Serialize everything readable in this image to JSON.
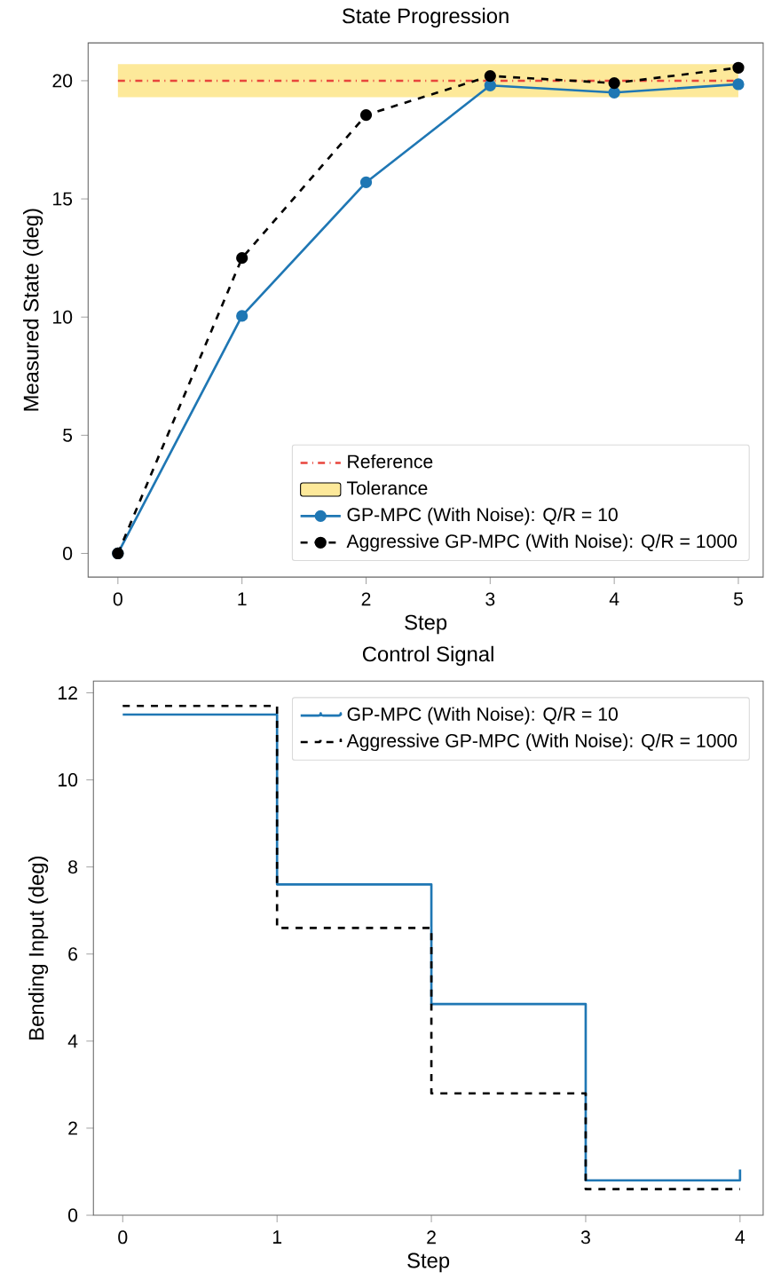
{
  "chart_data": [
    {
      "type": "line",
      "title": "State Progression",
      "xlabel": "Step",
      "ylabel": "Measured State (deg)",
      "x": [
        0,
        1,
        2,
        3,
        4,
        5
      ],
      "xlim": [
        -0.24,
        5.2
      ],
      "ylim": [
        -1.0,
        21.6
      ],
      "xticks": [
        0,
        1,
        2,
        3,
        4,
        5
      ],
      "yticks": [
        0,
        5,
        10,
        15,
        20
      ],
      "marker": "circle",
      "legend": "bottom right",
      "ref_lines": [
        {
          "axis": "y",
          "value": 20,
          "label": "Reference",
          "color": "#e8453c",
          "line_style": "dashdot"
        }
      ],
      "bands": [
        {
          "axis": "y",
          "from": 19.3,
          "to": 20.7,
          "label": "Tolerance",
          "color": "#fde99a"
        }
      ],
      "series": [
        {
          "name": "GP-MPC (With Noise): Q/R = 10",
          "color": "#1f77b4",
          "line_style": "solid",
          "values": [
            0,
            10.05,
            15.7,
            19.8,
            19.5,
            19.85
          ]
        },
        {
          "name": "Aggressive GP-MPC (With Noise): Q/R = 1000",
          "color": "#000000",
          "line_style": "dashed",
          "values": [
            0,
            12.5,
            18.55,
            20.2,
            19.9,
            20.55
          ]
        }
      ]
    },
    {
      "type": "step",
      "title": "Control Signal",
      "xlabel": "Step",
      "ylabel": "Bending Input (deg)",
      "x": [
        0,
        1,
        2,
        3,
        4
      ],
      "xlim": [
        -0.19,
        4.15
      ],
      "ylim": [
        0,
        12.27
      ],
      "xticks": [
        0,
        1,
        2,
        3,
        4
      ],
      "yticks": [
        0,
        2,
        4,
        6,
        8,
        10,
        12
      ],
      "legend": "top right",
      "series": [
        {
          "name": "GP-MPC (With Noise): Q/R = 10",
          "color": "#1f77b4",
          "line_style": "solid",
          "values": [
            11.5,
            7.6,
            4.85,
            0.8,
            1.05
          ]
        },
        {
          "name": "Aggressive GP-MPC (With Noise): Q/R = 1000",
          "color": "#000000",
          "line_style": "dashed",
          "values": [
            11.7,
            6.6,
            2.8,
            0.6,
            0.6
          ]
        }
      ]
    }
  ]
}
